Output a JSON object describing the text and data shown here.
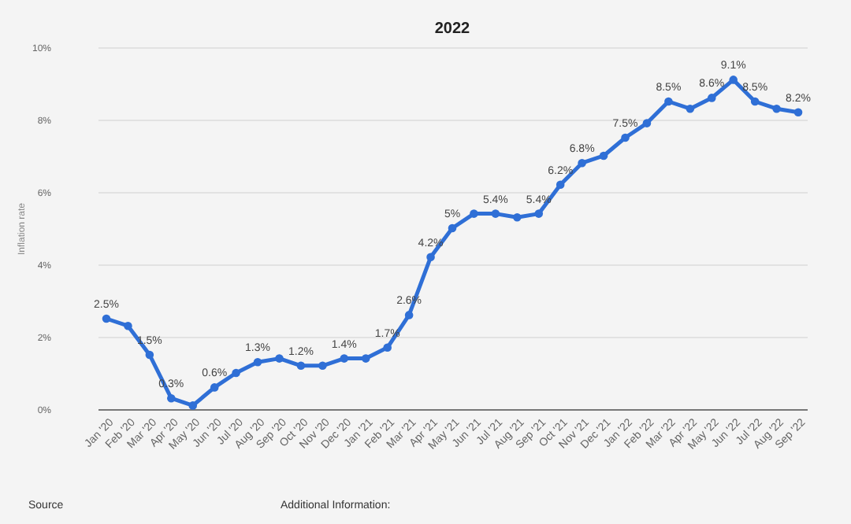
{
  "chart_data": {
    "type": "line",
    "title": "2022",
    "ylabel": "Inflation rate",
    "categories": [
      "Jan '20",
      "Feb '20",
      "Mar '20",
      "Apr '20",
      "May '20",
      "Jun '20",
      "Jul '20",
      "Aug '20",
      "Sep '20",
      "Oct '20",
      "Nov '20",
      "Dec '20",
      "Jan '21",
      "Feb '21",
      "Mar '21",
      "Apr '21",
      "May '21",
      "Jun '21",
      "Jul '21",
      "Aug '21",
      "Sep '21",
      "Oct '21",
      "Nov '21",
      "Dec '21",
      "Jan '22",
      "Feb '22",
      "Mar '22",
      "Apr '22",
      "May '22",
      "Jun '22",
      "Jul '22",
      "Aug '22",
      "Sep '22"
    ],
    "series": [
      {
        "color": "#2f6fd6",
        "values": [
          2.5,
          2.3,
          1.5,
          0.3,
          0.1,
          0.6,
          1.0,
          1.3,
          1.4,
          1.2,
          1.2,
          1.4,
          1.4,
          1.7,
          2.6,
          4.2,
          5,
          5.4,
          5.4,
          5.3,
          5.4,
          6.2,
          6.8,
          7.0,
          7.5,
          7.9,
          8.5,
          8.3,
          8.6,
          9.1,
          8.5,
          8.3,
          8.2
        ],
        "value_labels": [
          "2.5%",
          null,
          "1.5%",
          "0.3%",
          null,
          "0.6%",
          null,
          "1.3%",
          null,
          "1.2%",
          null,
          "1.4%",
          null,
          "1.7%",
          "2.6%",
          "4.2%",
          "5%",
          null,
          "5.4%",
          null,
          "5.4%",
          "6.2%",
          "6.8%",
          null,
          "7.5%",
          null,
          "8.5%",
          null,
          "8.6%",
          "9.1%",
          "8.5%",
          null,
          "8.2%"
        ]
      }
    ],
    "ylim": [
      0,
      10
    ],
    "yticks": [
      {
        "value": 0,
        "label": "0%"
      },
      {
        "value": 2,
        "label": "2%"
      },
      {
        "value": 4,
        "label": "4%"
      },
      {
        "value": 6,
        "label": "6%"
      },
      {
        "value": 8,
        "label": "8%"
      },
      {
        "value": 10,
        "label": "10%"
      }
    ],
    "grid": "y",
    "marker": "circle",
    "line_style": "solid",
    "annotations": [
      "Source",
      "Additional Information:"
    ]
  }
}
